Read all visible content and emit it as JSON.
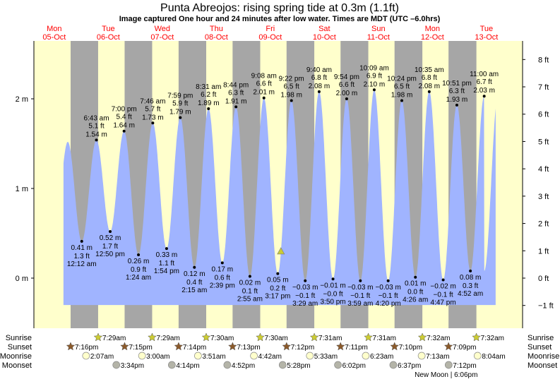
{
  "title": "Punta Abreojos: rising  spring tide at 0.3m (1.1ft)",
  "subtitle": "Image captured One hour and 24 minutes after low water. Times are MDT (UTC –6.0hrs)",
  "days": [
    {
      "dow": "Mon",
      "date": "05-Oct"
    },
    {
      "dow": "Tue",
      "date": "06-Oct"
    },
    {
      "dow": "Wed",
      "date": "07-Oct"
    },
    {
      "dow": "Thu",
      "date": "08-Oct"
    },
    {
      "dow": "Fri",
      "date": "09-Oct"
    },
    {
      "dow": "Sat",
      "date": "10-Oct"
    },
    {
      "dow": "Sun",
      "date": "11-Oct"
    },
    {
      "dow": "Mon",
      "date": "12-Oct"
    },
    {
      "dow": "Tue",
      "date": "13-Oct"
    }
  ],
  "colors": {
    "day_night": "#a6a6a6",
    "day": "#ffffcc",
    "tide_fill": "#a0b4ff",
    "day_label": "#ff0000",
    "sunrise": "#cccc33",
    "sunset": "#8b5a2b",
    "moonrise": "#ffffcc",
    "moonset": "#b4b4a8",
    "marker": "#cccc33"
  },
  "chart_data": {
    "type": "area",
    "title": "Punta Abreojos: rising  spring tide at 0.3m (1.1ft)",
    "y_left": {
      "unit": "m",
      "ticks": [
        "2 m",
        "1 m",
        "0 m"
      ],
      "tick_values": [
        2,
        1,
        0
      ],
      "range": [
        -0.3,
        2.6
      ]
    },
    "y_right": {
      "unit": "ft",
      "ticks": [
        "8 ft",
        "7 ft",
        "6 ft",
        "5 ft",
        "4 ft",
        "3 ft",
        "2 ft",
        "1 ft",
        "0 ft",
        "−1 ft"
      ],
      "tick_values": [
        8,
        7,
        6,
        5,
        4,
        3,
        2,
        1,
        0,
        -1
      ]
    },
    "start_high": {
      "date": "05-Oct",
      "time": "6:00 pm",
      "m": 1.52
    },
    "tides": [
      {
        "date": "06-Oct",
        "time": "12:12 am",
        "type": "low",
        "m": "0.41 m",
        "ft": "1.3 ft",
        "value": 0.41
      },
      {
        "date": "06-Oct",
        "time": "6:43 am",
        "type": "high",
        "m": "1.54 m",
        "ft": "5.1 ft",
        "value": 1.54
      },
      {
        "date": "06-Oct",
        "time": "12:50 pm",
        "type": "low",
        "m": "0.52 m",
        "ft": "1.7 ft",
        "value": 0.52
      },
      {
        "date": "06-Oct",
        "time": "7:00 pm",
        "type": "high",
        "m": "1.64 m",
        "ft": "5.4 ft",
        "value": 1.64
      },
      {
        "date": "07-Oct",
        "time": "1:24 am",
        "type": "low",
        "m": "0.26 m",
        "ft": "0.9 ft",
        "value": 0.26
      },
      {
        "date": "07-Oct",
        "time": "7:46 am",
        "type": "high",
        "m": "1.73 m",
        "ft": "5.7 ft",
        "value": 1.73
      },
      {
        "date": "07-Oct",
        "time": "1:54 pm",
        "type": "low",
        "m": "0.33 m",
        "ft": "1.1 ft",
        "value": 0.33
      },
      {
        "date": "07-Oct",
        "time": "7:59 pm",
        "type": "high",
        "m": "1.79 m",
        "ft": "5.9 ft",
        "value": 1.79
      },
      {
        "date": "08-Oct",
        "time": "2:15 am",
        "type": "low",
        "m": "0.12 m",
        "ft": "0.4 ft",
        "value": 0.12
      },
      {
        "date": "08-Oct",
        "time": "8:31 am",
        "type": "high",
        "m": "1.89 m",
        "ft": "6.2 ft",
        "value": 1.89
      },
      {
        "date": "08-Oct",
        "time": "2:39 pm",
        "type": "low",
        "m": "0.17 m",
        "ft": "0.6 ft",
        "value": 0.17
      },
      {
        "date": "08-Oct",
        "time": "8:44 pm",
        "type": "high",
        "m": "1.91 m",
        "ft": "6.3 ft",
        "value": 1.91
      },
      {
        "date": "09-Oct",
        "time": "2:55 am",
        "type": "low",
        "m": "0.02 m",
        "ft": "0.1 ft",
        "value": 0.02
      },
      {
        "date": "09-Oct",
        "time": "9:08 am",
        "type": "high",
        "m": "2.01 m",
        "ft": "6.6 ft",
        "value": 2.01
      },
      {
        "date": "09-Oct",
        "time": "3:17 pm",
        "type": "low",
        "m": "0.05 m",
        "ft": "0.2 ft",
        "value": 0.05
      },
      {
        "date": "09-Oct",
        "time": "9:22 pm",
        "type": "high",
        "m": "1.98 m",
        "ft": "6.5 ft",
        "value": 1.98
      },
      {
        "date": "10-Oct",
        "time": "3:29 am",
        "type": "low",
        "m": "−0.03 m",
        "ft": "−0.1 ft",
        "value": -0.03
      },
      {
        "date": "10-Oct",
        "time": "9:40 am",
        "type": "high",
        "m": "2.08 m",
        "ft": "6.8 ft",
        "value": 2.08
      },
      {
        "date": "10-Oct",
        "time": "3:50 pm",
        "type": "low",
        "m": "−0.01 m",
        "ft": "−0.0 ft",
        "value": -0.01
      },
      {
        "date": "10-Oct",
        "time": "9:54 pm",
        "type": "high",
        "m": "2.00 m",
        "ft": "6.6 ft",
        "value": 2.0
      },
      {
        "date": "11-Oct",
        "time": "3:59 am",
        "type": "low",
        "m": "−0.03 m",
        "ft": "−0.1 ft",
        "value": -0.03
      },
      {
        "date": "11-Oct",
        "time": "10:09 am",
        "type": "high",
        "m": "2.10 m",
        "ft": "6.9 ft",
        "value": 2.1
      },
      {
        "date": "11-Oct",
        "time": "4:20 pm",
        "type": "low",
        "m": "−0.03 m",
        "ft": "−0.1 ft",
        "value": -0.03
      },
      {
        "date": "11-Oct",
        "time": "10:24 pm",
        "type": "high",
        "m": "1.98 m",
        "ft": "6.5 ft",
        "value": 1.98
      },
      {
        "date": "12-Oct",
        "time": "4:26 am",
        "type": "low",
        "m": "0.01 m",
        "ft": "0.0 ft",
        "value": 0.01
      },
      {
        "date": "12-Oct",
        "time": "10:35 am",
        "type": "high",
        "m": "2.08 m",
        "ft": "6.8 ft",
        "value": 2.08
      },
      {
        "date": "12-Oct",
        "time": "4:47 pm",
        "type": "low",
        "m": "−0.02 m",
        "ft": "−0.1 ft",
        "value": -0.02
      },
      {
        "date": "12-Oct",
        "time": "10:51 pm",
        "type": "high",
        "m": "1.93 m",
        "ft": "6.3 ft",
        "value": 1.93
      },
      {
        "date": "13-Oct",
        "time": "4:52 am",
        "type": "low",
        "m": "0.08 m",
        "ft": "0.3 ft",
        "value": 0.08
      },
      {
        "date": "13-Oct",
        "time": "11:00 am",
        "type": "high",
        "m": "2.03 m",
        "ft": "6.7 ft",
        "value": 2.03
      }
    ],
    "current": {
      "date": "09-Oct",
      "time": "4:41 pm",
      "m": 0.3
    }
  },
  "rows": {
    "sunrise": {
      "label": "Sunrise",
      "events": [
        {
          "date": "06-Oct",
          "time": "7:29am"
        },
        {
          "date": "07-Oct",
          "time": "7:29am"
        },
        {
          "date": "08-Oct",
          "time": "7:30am"
        },
        {
          "date": "09-Oct",
          "time": "7:30am"
        },
        {
          "date": "10-Oct",
          "time": "7:31am"
        },
        {
          "date": "11-Oct",
          "time": "7:31am"
        },
        {
          "date": "12-Oct",
          "time": "7:32am"
        },
        {
          "date": "13-Oct",
          "time": "7:32am"
        }
      ]
    },
    "sunset": {
      "label": "Sunset",
      "events": [
        {
          "date": "05-Oct",
          "time": "7:16pm"
        },
        {
          "date": "06-Oct",
          "time": "7:15pm"
        },
        {
          "date": "07-Oct",
          "time": "7:14pm"
        },
        {
          "date": "08-Oct",
          "time": "7:13pm"
        },
        {
          "date": "09-Oct",
          "time": "7:12pm"
        },
        {
          "date": "10-Oct",
          "time": "7:11pm"
        },
        {
          "date": "11-Oct",
          "time": "7:10pm"
        },
        {
          "date": "12-Oct",
          "time": "7:09pm"
        }
      ]
    },
    "moonrise": {
      "label": "Moonrise",
      "events": [
        {
          "date": "06-Oct",
          "time": "2:07am"
        },
        {
          "date": "07-Oct",
          "time": "3:00am"
        },
        {
          "date": "08-Oct",
          "time": "3:51am"
        },
        {
          "date": "09-Oct",
          "time": "4:42am"
        },
        {
          "date": "10-Oct",
          "time": "5:33am"
        },
        {
          "date": "11-Oct",
          "time": "6:23am"
        },
        {
          "date": "12-Oct",
          "time": "7:13am"
        },
        {
          "date": "13-Oct",
          "time": "8:04am"
        }
      ]
    },
    "moonset": {
      "label": "Moonset",
      "events": [
        {
          "date": "06-Oct",
          "time": "3:34pm"
        },
        {
          "date": "07-Oct",
          "time": "4:14pm"
        },
        {
          "date": "08-Oct",
          "time": "4:52pm"
        },
        {
          "date": "09-Oct",
          "time": "5:28pm"
        },
        {
          "date": "10-Oct",
          "time": "6:02pm"
        },
        {
          "date": "11-Oct",
          "time": "6:37pm"
        },
        {
          "date": "12-Oct",
          "time": "7:12pm"
        }
      ]
    },
    "moon_phase": {
      "date": "12-Oct",
      "time": "6:06pm",
      "label": "New Moon | 6:06pm"
    }
  }
}
